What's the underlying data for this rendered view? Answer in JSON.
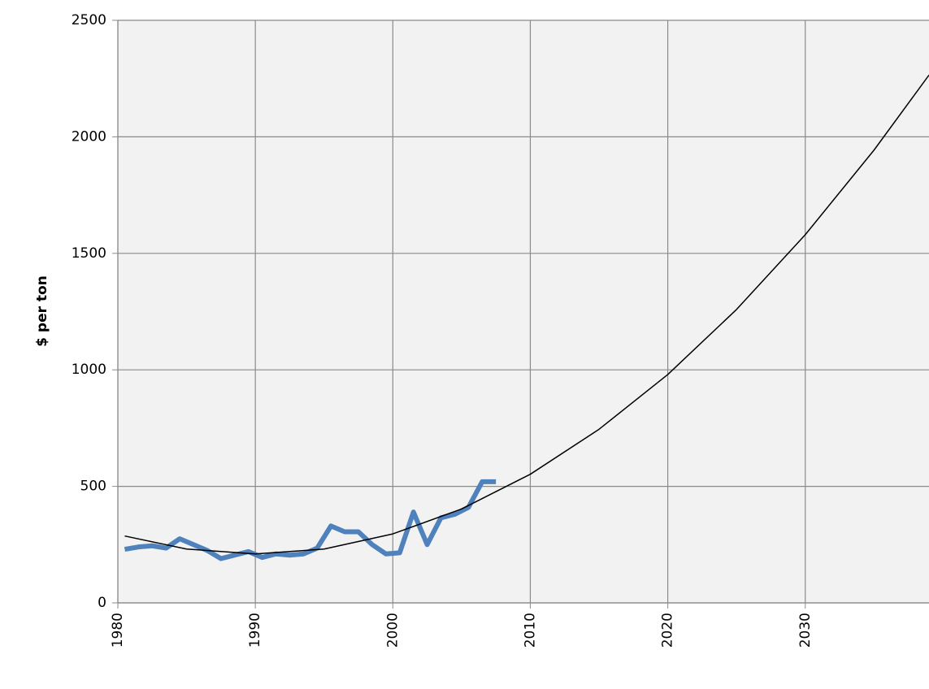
{
  "chart_data": {
    "type": "line",
    "y_label": "$ per ton",
    "xlim": [
      1980,
      2039
    ],
    "ylim": [
      0,
      2500
    ],
    "xticks": [
      1980,
      1990,
      2000,
      2010,
      2020,
      2030
    ],
    "yticks": [
      0,
      500,
      1000,
      1500,
      2000,
      2500
    ],
    "grid": true,
    "series": [
      {
        "color": "#4f81bd",
        "width": 6,
        "x": [
          1980.5,
          1981.5,
          1982.5,
          1983.5,
          1984.5,
          1985.5,
          1986.5,
          1987.5,
          1988.5,
          1989.5,
          1990.5,
          1991.5,
          1992.5,
          1993.5,
          1994.5,
          1995.5,
          1996.5,
          1997.5,
          1998.5,
          1999.5,
          2000.5,
          2001.5,
          2002.5,
          2003.5,
          2004.5,
          2005.5,
          2006.5,
          2007.5
        ],
        "values": [
          230,
          240,
          245,
          235,
          275,
          250,
          225,
          190,
          205,
          220,
          195,
          210,
          205,
          210,
          235,
          330,
          305,
          305,
          250,
          210,
          215,
          390,
          250,
          365,
          380,
          410,
          520,
          520
        ]
      },
      {
        "color": "#000000",
        "width": 1.5,
        "x": [
          1980.5,
          1985,
          1990,
          1995,
          2000,
          2005,
          2010,
          2015,
          2020,
          2025,
          2030,
          2035,
          2039
        ],
        "values": [
          287,
          231,
          210,
          231,
          296,
          403,
          552,
          745,
          980,
          1259,
          1580,
          1943,
          2265
        ]
      }
    ]
  }
}
